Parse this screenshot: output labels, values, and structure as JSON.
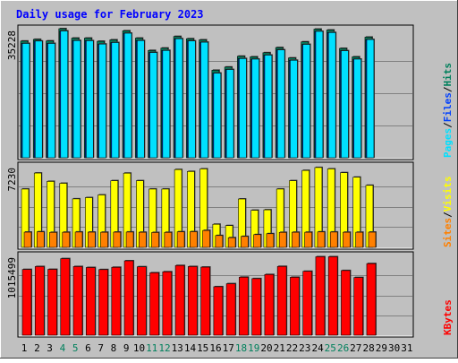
{
  "chart_data": {
    "type": "bar",
    "title": "Daily usage for February 2023",
    "days": [
      "1",
      "2",
      "3",
      "4",
      "5",
      "6",
      "7",
      "8",
      "9",
      "10",
      "11",
      "12",
      "13",
      "14",
      "15",
      "16",
      "17",
      "18",
      "19",
      "20",
      "21",
      "22",
      "23",
      "24",
      "25",
      "26",
      "27",
      "28",
      "29",
      "30",
      "31"
    ],
    "weekend_days": [
      "4",
      "5",
      "11",
      "12",
      "18",
      "19",
      "25",
      "26"
    ],
    "panels": {
      "hits_files_pages": {
        "y_label": "35228",
        "ymax": 35228,
        "legend": [
          "Pages",
          "/",
          "Files",
          "/",
          "Hits"
        ],
        "series": {
          "hits": [
            31850,
            32310,
            31890,
            35228,
            32650,
            32650,
            31790,
            32180,
            34660,
            32650,
            29290,
            29930,
            33110,
            32490,
            32180,
            23890,
            24760,
            27710,
            27550,
            28670,
            30080,
            27240,
            31630,
            35100,
            34860,
            29850,
            27550,
            32920
          ],
          "files": [
            31200,
            31850,
            31200,
            34600,
            31990,
            31950,
            31030,
            31440,
            34000,
            31990,
            28720,
            29290,
            32490,
            31890,
            31540,
            23100,
            24080,
            27080,
            26920,
            28020,
            29450,
            26610,
            30940,
            34500,
            34180,
            29210,
            26920,
            32270
          ],
          "pages": [
            31200,
            31850,
            31200,
            34600,
            31990,
            31950,
            31030,
            31440,
            34000,
            31990,
            28720,
            29290,
            32490,
            31890,
            31540,
            23100,
            24080,
            27080,
            26920,
            28020,
            29450,
            26610,
            30940,
            34500,
            34180,
            29210,
            26920,
            32270
          ]
        },
        "colors": {
          "hits": "#00805c",
          "files": "#0040ff",
          "pages": "#00e0ff"
        }
      },
      "visits_sites": {
        "y_label": "7230",
        "ymax": 7230,
        "legend": [
          "Sites",
          "/",
          "Visits"
        ],
        "series": {
          "visits": [
            5170,
            6590,
            5850,
            5680,
            4300,
            4410,
            4650,
            5910,
            6580,
            5910,
            5170,
            5170,
            6900,
            6730,
            6960,
            2050,
            1930,
            4290,
            3290,
            3330,
            5170,
            5910,
            6820,
            7080,
            6960,
            6620,
            6220,
            5500
          ],
          "sites": [
            1350,
            1380,
            1330,
            1340,
            1360,
            1350,
            1340,
            1350,
            1360,
            1340,
            1320,
            1330,
            1380,
            1390,
            1500,
            1050,
            860,
            970,
            1130,
            1210,
            1330,
            1340,
            1340,
            1370,
            1360,
            1340,
            1340,
            1350
          ]
        },
        "colors": {
          "visits": "#ffff00",
          "sites": "#ff8000"
        }
      },
      "kbytes": {
        "y_label": "1015499",
        "ymax": 1015499,
        "legend": [
          "KBytes"
        ],
        "series": {
          "kbytes": [
            836900,
            874300,
            838200,
            974600,
            874300,
            862000,
            835400,
            864700,
            947200,
            871000,
            795000,
            807700,
            887500,
            874300,
            866900,
            617200,
            655500,
            738700,
            720300,
            772800,
            876000,
            737500,
            813500,
            999000,
            999000,
            823200,
            734600,
            911800
          ]
        },
        "colors": {
          "kbytes": "#ff0000"
        }
      }
    },
    "colors": {
      "background": "#c0c0c0",
      "title": "#0000ff",
      "weekday_label": "#000000",
      "weekend_label": "#00805c",
      "gridline": "#808080"
    }
  }
}
